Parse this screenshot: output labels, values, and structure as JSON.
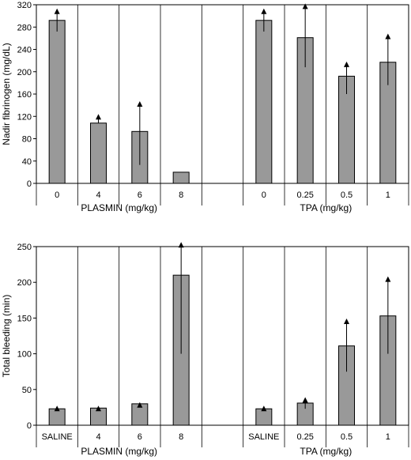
{
  "chart_data": [
    {
      "type": "bar",
      "ylabel": "Nadir fibrinogen (mg/dL)",
      "ylim": [
        0,
        320
      ],
      "yticks": [
        0,
        40,
        80,
        120,
        160,
        200,
        240,
        280,
        320
      ],
      "grid": false,
      "groups": [
        {
          "label": "PLASMIN (mg/kg)",
          "categories": [
            "0",
            "4",
            "6",
            "8"
          ],
          "values": [
            292,
            108,
            93,
            20
          ],
          "error_upper": [
            309,
            120,
            143,
            null
          ],
          "error_lower": [
            272,
            null,
            33,
            null
          ]
        },
        {
          "label": "TPA (mg/kg)",
          "categories": [
            "0",
            "0.25",
            "0.5",
            "1"
          ],
          "values": [
            292,
            261,
            192,
            217
          ],
          "error_upper": [
            309,
            318,
            214,
            264
          ],
          "error_lower": [
            272,
            208,
            160,
            176
          ]
        }
      ],
      "bar_color": "#999999"
    },
    {
      "type": "bar",
      "ylabel": "Total bleeding (min)",
      "ylim": [
        0,
        250
      ],
      "yticks": [
        0,
        50,
        100,
        150,
        200,
        250
      ],
      "grid": false,
      "groups": [
        {
          "label": "PLASMIN (mg/kg)",
          "categories": [
            "SALINE",
            "4",
            "6",
            "8"
          ],
          "values": [
            23,
            24,
            30,
            210
          ],
          "error_upper": [
            24,
            24,
            29,
            253
          ],
          "error_lower": [
            null,
            null,
            null,
            100
          ]
        },
        {
          "label": "TPA (mg/kg)",
          "categories": [
            "SALINE",
            "0.25",
            "0.5",
            "1"
          ],
          "values": [
            23,
            31,
            111,
            153
          ],
          "error_upper": [
            24,
            36,
            146,
            205
          ],
          "error_lower": [
            null,
            23,
            75,
            100
          ]
        }
      ],
      "bar_color": "#999999"
    }
  ]
}
